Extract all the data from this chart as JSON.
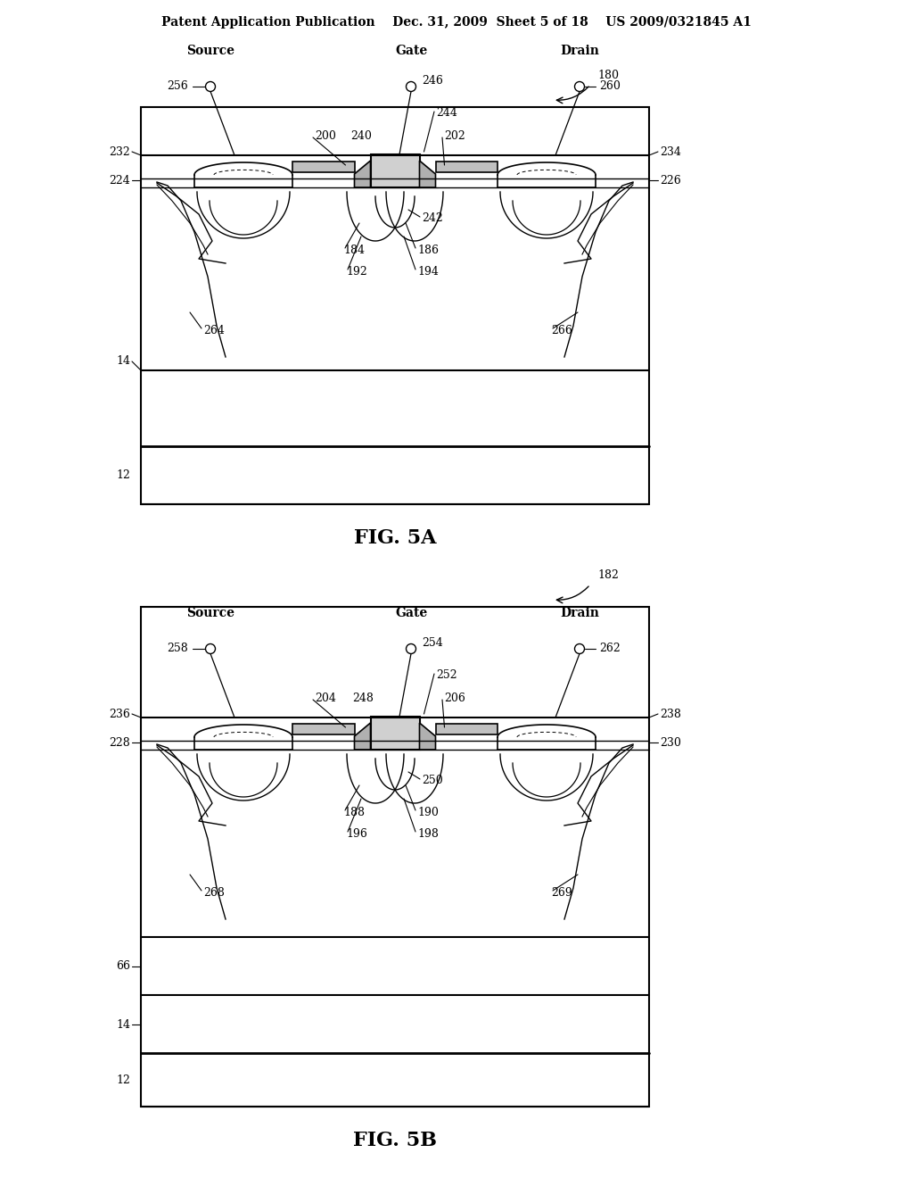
{
  "bg_color": "#ffffff",
  "header": "Patent Application Publication    Dec. 31, 2009  Sheet 5 of 18    US 2009/0321845 A1",
  "fig5a_caption": "FIG. 5A",
  "fig5b_caption": "FIG. 5B",
  "header_fontsize": 10,
  "caption_fontsize": 16,
  "label_fontsize": 10,
  "annot_fontsize": 9
}
